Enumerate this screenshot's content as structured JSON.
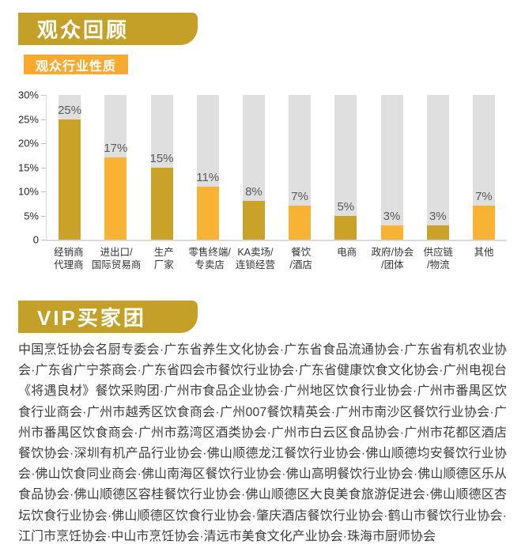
{
  "page": {
    "background": "#FFFFFF"
  },
  "sections": {
    "audience_review": {
      "title": "观众回顾",
      "chart_badge": "观众行业性质"
    },
    "vip": {
      "title": "VIP买家团",
      "text": "中国烹饪协会名厨专委会·广东省养生文化协会·广东省食品流通协会·广东省有机农业协会·广东省广宁茶商会·广东省四会市餐饮行业协会·广东省健康饮食文化协会·广州电视台《将遇良材》餐饮采购团·广州市食品企业协会·广州地区饮食行业协会·广州市番禺区饮食行业商会·广州市越秀区饮食商会·广州007餐饮精英会·广州市南沙区餐饮行业协会·广州市番禺区饮食商会·广州市荔湾区酒类协会·广州市白云区食品协会·广州市花都区酒店餐饮协会·深圳有机产品行业协会·佛山顺德龙江餐饮行业协会·佛山顺德均安餐饮行业协会·佛山饮食同业商会·佛山南海区餐饮行业协会·佛山高明餐饮行业协会·佛山顺德区乐从食品协会·佛山顺德区容桂餐饮行业协会·佛山顺德区大良美食旅游促进会·佛山顺德区杏坛饮食行业协会·佛山顺德区饮食行业协会·肇庆酒店餐饮行业协会·鹤山市餐饮行业协会·江门市烹饪协会·中山市烹饪协会·清远市美食文化产业协会·珠海市厨师协会"
    }
  },
  "chart_data": {
    "type": "bar",
    "title": "观众行业性质",
    "categories": [
      [
        "经销商",
        "代理商"
      ],
      [
        "进出口/",
        "国际贸易商"
      ],
      [
        "生产",
        "厂家"
      ],
      [
        "零售终端/",
        "专卖店"
      ],
      [
        "KA卖场/",
        "连锁经营"
      ],
      [
        "餐饮",
        "/酒店"
      ],
      [
        "电商"
      ],
      [
        "政府/协会",
        "/团体"
      ],
      [
        "供应链",
        "/物流"
      ],
      [
        "其他"
      ]
    ],
    "values": [
      25,
      17,
      15,
      11,
      8,
      7,
      5,
      3,
      3,
      7
    ],
    "value_labels": [
      "25%",
      "17%",
      "15%",
      "11%",
      "8%",
      "7%",
      "5%",
      "3%",
      "3%",
      "7%"
    ],
    "xlabel": "",
    "ylabel": "",
    "ylim": [
      0,
      30
    ],
    "ytick_labels": [
      "30%",
      "25%",
      "20%",
      "15%",
      "10%",
      "5%",
      "0"
    ],
    "legend": "none",
    "grid": "off",
    "track_bars_to_max": true,
    "colors": {
      "bar_odd": "#C9A227",
      "bar_even": "#F9B334",
      "track": "#DFDFDF",
      "axis": "#D9D9D9",
      "value_label": "#595959",
      "banner_gold": "#C5A028",
      "badge_orange": "#F8A930"
    }
  }
}
